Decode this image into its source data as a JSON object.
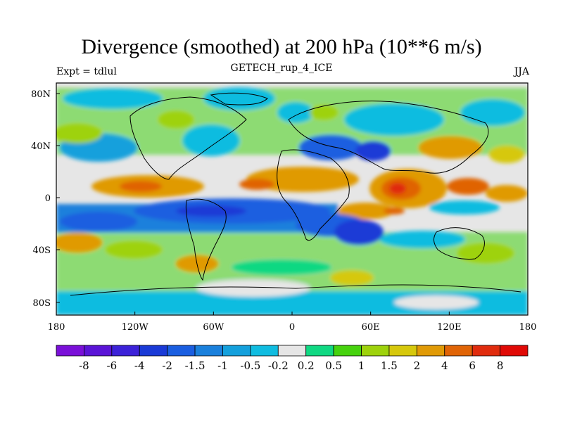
{
  "title": "Divergence (smoothed) at 200 hPa (10**6 m/s)",
  "subtitle": "GETECH_rup_4_ICE",
  "left_label": "Expt = tdlul",
  "right_label": "JJA",
  "lat_ticks": [
    "80N",
    "40N",
    "0",
    "40S",
    "80S"
  ],
  "lon_ticks": [
    "180",
    "120W",
    "60W",
    "0",
    "60E",
    "120E",
    "180"
  ],
  "colorbar": {
    "labels": [
      "-8",
      "-6",
      "-4",
      "-2",
      "-1.5",
      "-1",
      "-0.5",
      "-0.2",
      "0.2",
      "0.5",
      "1",
      "1.5",
      "2",
      "4",
      "6",
      "8"
    ],
    "colors": [
      "#7a10d8",
      "#5a14d6",
      "#3c22d8",
      "#1a3ad6",
      "#1a5ee0",
      "#1a80dc",
      "#14a0dc",
      "#10bce0",
      "#e6e6e6",
      "#10d882",
      "#46d20e",
      "#9ed20c",
      "#d6c80c",
      "#e09a06",
      "#e06406",
      "#e02c0e",
      "#e00a06"
    ]
  }
}
